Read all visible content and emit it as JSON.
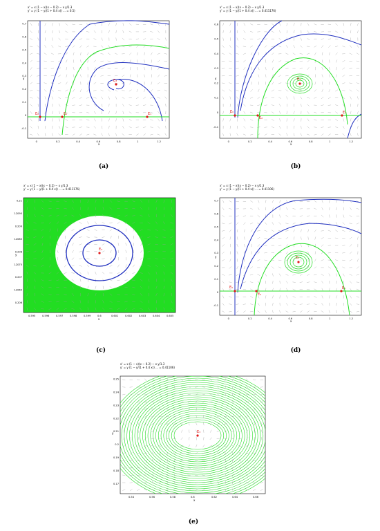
{
  "panels": [
    {
      "id": "a",
      "caption": "(a)",
      "equations": [
        "x' = x (1 − x)(x − 0.2) − x y/1.3",
        "y' = y (1 − y/(1 + 0.4 x)) ... = 0.5)"
      ],
      "xlabel": "x",
      "ylabel": "y",
      "xticks": [
        "0",
        "0.2",
        "0.4",
        "0.6",
        "0.8",
        "1",
        "1.2"
      ],
      "yticks": [
        "0.7",
        "0.6",
        "0.5",
        "0.4",
        "0.3",
        "0.2",
        "0.1",
        "0",
        "-0.1"
      ],
      "points": [
        "E₀",
        "E₂",
        "E₁",
        "E₃"
      ]
    },
    {
      "id": "b",
      "caption": "(b)",
      "equations": [
        "x' = x (1 − x)(x − 0.2) − x y/1.3",
        "y' = y (1 − y/(1 + 0.4 x)) ... = 0.411176)"
      ],
      "xlabel": "x",
      "ylabel": "y",
      "xticks": [
        "0",
        "0.2",
        "0.4",
        "0.6",
        "0.8",
        "1",
        "1.2"
      ],
      "yticks": [
        "0.6",
        "0.5",
        "0.4",
        "0.3",
        "0.2",
        "0.1",
        "0",
        "-0.1"
      ],
      "points": [
        "E₀",
        "E₂",
        "E₁",
        "E₃"
      ]
    },
    {
      "id": "c",
      "caption": "(c)",
      "equations": [
        "x' = x (1 − x)(x − 0.2) − x y/1.3",
        "y' = y (1 − y/(1 + 0.4 x)) ... = 0.411176)"
      ],
      "xlabel": "x",
      "ylabel": "y",
      "xticks": [
        "0.595",
        "0.596",
        "0.597",
        "0.598",
        "0.599",
        "0.6",
        "0.601",
        "0.602",
        "0.603",
        "0.604",
        "0.605"
      ],
      "yticks": [
        "0.21",
        "0.2095",
        "0.209",
        "0.2085",
        "0.208",
        "0.2075",
        "0.207",
        "0.2065",
        "0.206"
      ],
      "points": [
        "E₃"
      ]
    },
    {
      "id": "d",
      "caption": "(d)",
      "equations": [
        "x' = x (1 − x)(x − 0.2) − x y/1.3",
        "y' = y (1 − y/(1 + 0.4 x)) ... = 0.41106)"
      ],
      "xlabel": "x",
      "ylabel": "y",
      "xticks": [
        "0",
        "0.2",
        "0.4",
        "0.6",
        "0.8",
        "1",
        "1.2"
      ],
      "yticks": [
        "0.7",
        "0.6",
        "0.5",
        "0.4",
        "0.3",
        "0.2",
        "0.1",
        "0",
        "-0.1"
      ],
      "points": [
        "E₀",
        "E₂",
        "E₁",
        "E₃"
      ]
    },
    {
      "id": "e",
      "caption": "(e)",
      "equations": [
        "x' = x (1 − x)(x − 0.2) − x y/1.3",
        "y' = y (1 − y/(1 + 0.4 x)) ... = 0.41106)"
      ],
      "xlabel": "x",
      "ylabel": "y",
      "xticks": [
        "0.54",
        "0.56",
        "0.58",
        "0.6",
        "0.62",
        "0.64",
        "0.66"
      ],
      "yticks": [
        "0.25",
        "0.24",
        "0.23",
        "0.22",
        "0.21",
        "0.2",
        "0.19",
        "0.18",
        "0.17"
      ],
      "points": [
        "E₃"
      ]
    }
  ],
  "colors": {
    "blue": "#1f2fbf",
    "green": "#22dd22",
    "red": "#e01818",
    "field": "#9a9a9a"
  }
}
